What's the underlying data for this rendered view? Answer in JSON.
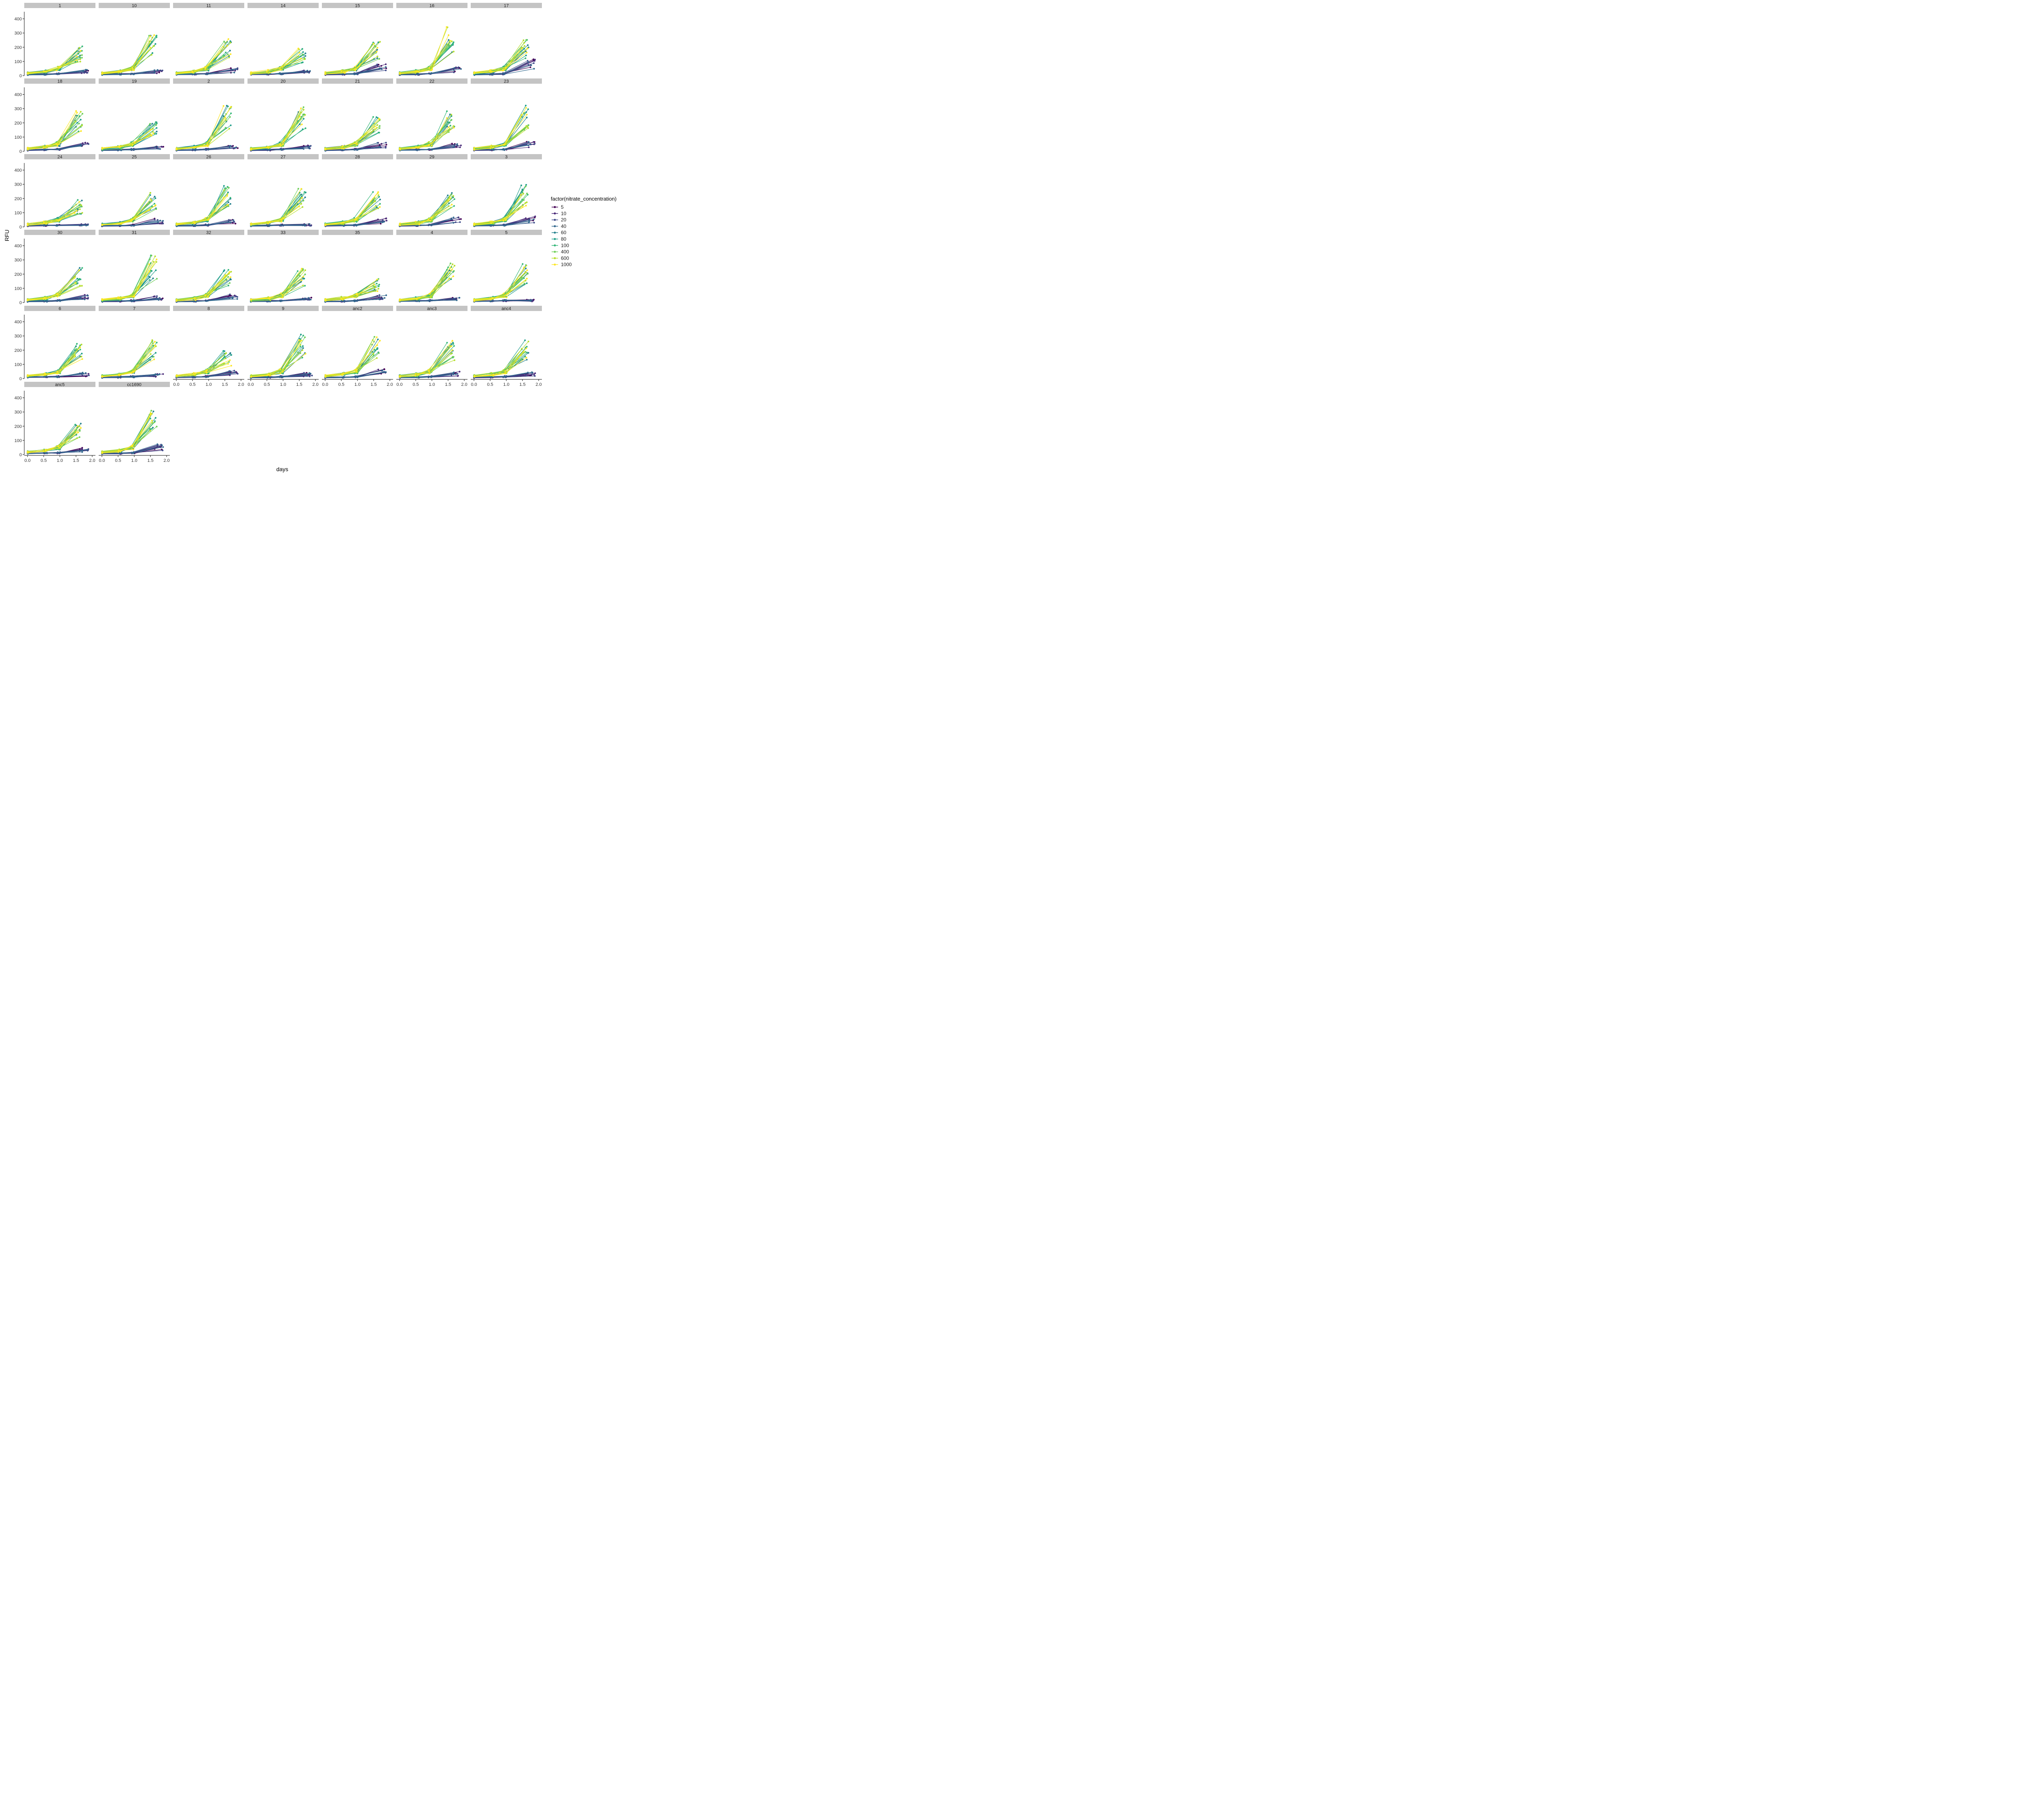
{
  "chart_data": {
    "type": "line",
    "facet_by": "strain",
    "panels": [
      "1",
      "10",
      "11",
      "14",
      "15",
      "16",
      "17",
      "18",
      "19",
      "2",
      "20",
      "21",
      "22",
      "23",
      "24",
      "25",
      "26",
      "27",
      "28",
      "29",
      "3",
      "30",
      "31",
      "32",
      "33",
      "35",
      "4",
      "5",
      "6",
      "7",
      "8",
      "9",
      "anc2",
      "anc3",
      "anc4",
      "anc5",
      "cc1690"
    ],
    "xlabel": "days",
    "ylabel": "RFU",
    "xlim": [
      0.0,
      2.0
    ],
    "ylim": [
      0,
      450
    ],
    "x_ticks": [
      "0.0",
      "0.5",
      "1.0",
      "1.5",
      "2.0"
    ],
    "y_ticks": [
      "0",
      "100",
      "200",
      "300",
      "400"
    ],
    "legend": {
      "title": "factor(nitrate_concentration)",
      "position": "right",
      "entries": [
        "5",
        "10",
        "20",
        "40",
        "60",
        "80",
        "100",
        "400",
        "600",
        "1000"
      ]
    },
    "colors": {
      "5": "#440154",
      "10": "#482878",
      "20": "#3E4A89",
      "40": "#31688E",
      "60": "#26828E",
      "80": "#1F9E89",
      "100": "#35B779",
      "400": "#6ECE58",
      "600": "#B5DE2B",
      "1000": "#FDE725",
      "strip": "#c4c4c4"
    },
    "timepoints_days": [
      0.0,
      0.55,
      0.95,
      1.55
    ],
    "high_nitrate_final_rfu": {
      "1": 160,
      "10": 240,
      "11": 210,
      "14": 150,
      "15": 190,
      "16": 270,
      "17": 200,
      "18": 220,
      "19": 160,
      "2": 250,
      "20": 240,
      "21": 190,
      "22": 220,
      "23": 250,
      "24": 150,
      "25": 190,
      "26": 240,
      "27": 210,
      "28": 200,
      "29": 190,
      "3": 230,
      "30": 190,
      "31": 260,
      "32": 180,
      "33": 190,
      "35": 130,
      "4": 230,
      "5": 210,
      "6": 190,
      "7": 210,
      "8": 150,
      "9": 240,
      "anc2": 230,
      "anc3": 210,
      "anc4": 210,
      "anc5": 170,
      "cc1690": 240
    },
    "low_nitrate_final_rfu": {
      "1": 30,
      "10": 30,
      "11": 40,
      "14": 30,
      "15": 60,
      "16": 45,
      "17": 90,
      "18": 45,
      "19": 25,
      "2": 30,
      "20": 30,
      "21": 45,
      "22": 40,
      "23": 50,
      "24": 15,
      "25": 45,
      "26": 40,
      "27": 15,
      "28": 45,
      "29": 50,
      "3": 55,
      "30": 40,
      "31": 35,
      "32": 50,
      "33": 35,
      "35": 40,
      "4": 25,
      "5": 15,
      "6": 30,
      "7": 25,
      "8": 40,
      "9": 30,
      "anc2": 50,
      "anc3": 35,
      "anc4": 35,
      "anc5": 35,
      "cc1690": 55
    }
  }
}
